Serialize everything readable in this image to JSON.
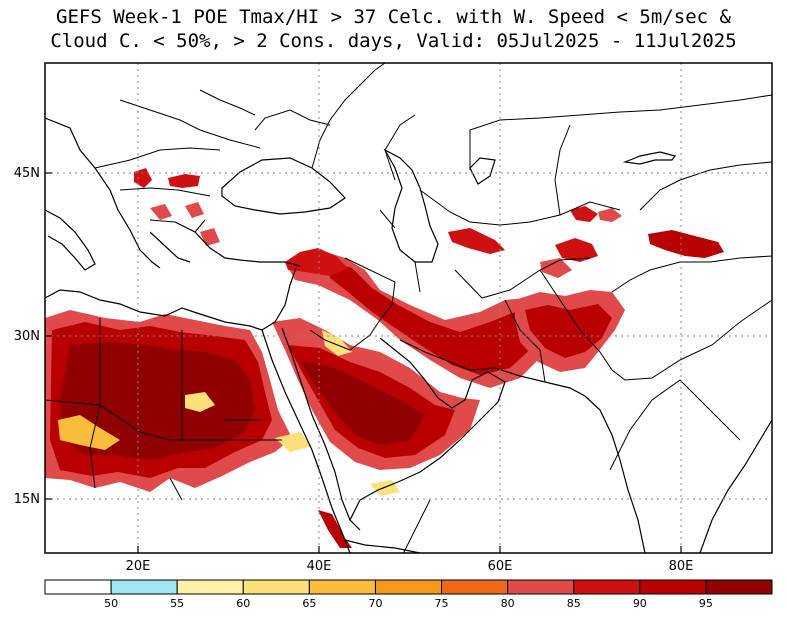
{
  "title": {
    "line1": "GEFS Week-1 POE Tmax/HI > 37 Celc. with W. Speed < 5m/sec &",
    "line2": "Cloud C. < 50%, > 2 Cons. days, Valid: 05Jul2025 - 11Jul2025"
  },
  "axes": {
    "x_ticks": [
      "20E",
      "40E",
      "60E",
      "80E"
    ],
    "y_ticks": [
      "45N",
      "30N",
      "15N"
    ]
  },
  "colorbar": {
    "labels": [
      "50",
      "55",
      "60",
      "65",
      "70",
      "75",
      "80",
      "85",
      "90",
      "95"
    ],
    "colors": [
      "#ffffff",
      "#9fe6f2",
      "#fff2a8",
      "#fde07a",
      "#f9bd3c",
      "#f59a1a",
      "#ee6a1a",
      "#e04a4a",
      "#cf1010",
      "#b80000",
      "#900000"
    ]
  }
}
